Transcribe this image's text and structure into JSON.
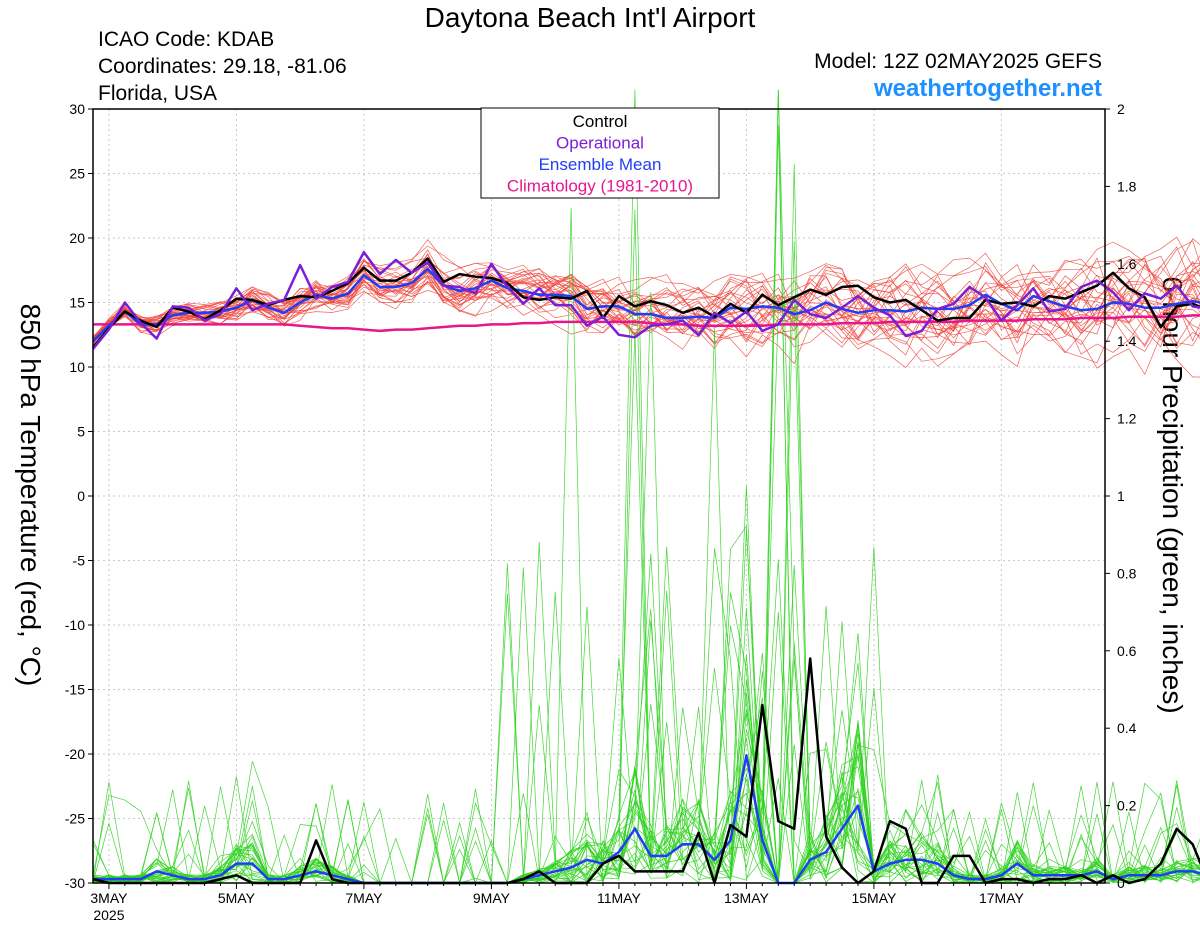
{
  "header": {
    "title": "Daytona Beach Int'l Airport",
    "icao": "ICAO Code: KDAB",
    "coords": "Coordinates: 29.18, -81.06",
    "region": "Florida, USA",
    "model": "Model: 12Z 02MAY2025 GEFS",
    "site": "weathertogether.net"
  },
  "colors": {
    "members": "#f0453c",
    "precip": "#2fd11f",
    "control": "#000000",
    "operational": "#7a1fd6",
    "mean": "#1f3ef5",
    "climatology": "#e6168f"
  },
  "chart_data": {
    "type": "line",
    "ylabel": "850 hPa Temperature (red, °C)",
    "y2label": "6-hour Precipitation (green, inches)",
    "ylim": [
      -30,
      30
    ],
    "y2lim": [
      0,
      2
    ],
    "yticks": [
      "30",
      "25",
      "20",
      "15",
      "10",
      "5",
      "0",
      "-5",
      "-10",
      "-15",
      "-20",
      "-25",
      "-30"
    ],
    "y2ticks": [
      "2",
      "1.8",
      "1.6",
      "1.4",
      "1.2",
      "1",
      "0.8",
      "0.6",
      "0.4",
      "0.2",
      "0"
    ],
    "xlim": [
      2.75,
      18.625
    ],
    "xticks": [
      {
        "x": 3,
        "label": "3MAY",
        "sub": "2025"
      },
      {
        "x": 5,
        "label": "5MAY",
        "sub": ""
      },
      {
        "x": 7,
        "label": "7MAY",
        "sub": ""
      },
      {
        "x": 9,
        "label": "9MAY",
        "sub": ""
      },
      {
        "x": 11,
        "label": "11MAY",
        "sub": ""
      },
      {
        "x": 13,
        "label": "13MAY",
        "sub": ""
      },
      {
        "x": 15,
        "label": "15MAY",
        "sub": ""
      },
      {
        "x": 17,
        "label": "17MAY",
        "sub": ""
      }
    ],
    "x_units": "days of May 2025, 6-hourly from 2.75 (12Z 02MAY)",
    "legend": {
      "position": "top-center",
      "entries": [
        "Control",
        "Operational",
        "Ensemble Mean",
        "Climatology (1981-2010)"
      ]
    },
    "temperature": {
      "control": [
        11.5,
        13,
        14.3,
        13.6,
        13.1,
        14.6,
        14.3,
        13.7,
        14.4,
        15.3,
        15.2,
        14.8,
        15.2,
        15.5,
        15.4,
        15.9,
        16.5,
        17.7,
        16.7,
        16.7,
        17.3,
        18.4,
        16.6,
        17.2,
        17,
        16.9,
        16.5,
        15.4,
        15.2,
        15.4,
        15.3,
        15.9,
        13.8,
        15.5,
        14.7,
        15.1,
        14.8,
        14.2,
        14.6,
        13.9,
        14.9,
        14.2,
        15.6,
        14.8,
        15.4,
        16,
        15.6,
        16.2,
        16.3,
        15.4,
        15,
        15.2,
        14.4,
        13.6,
        13.8,
        13.8,
        15.2,
        14.9,
        15,
        14.7,
        15.5,
        15.3,
        15.8,
        16.3,
        17.3,
        16.1,
        15.4,
        13.1,
        14.7,
        14.9,
        14.4
      ],
      "operational": [
        11.4,
        12.9,
        15,
        13.4,
        12.2,
        14.7,
        14.6,
        13.6,
        14.1,
        16.1,
        14.4,
        14.9,
        15.2,
        17.9,
        15.3,
        16.2,
        16.6,
        18.9,
        17.2,
        18.3,
        17.3,
        18.1,
        16.3,
        16.2,
        15.7,
        18,
        16.2,
        14.9,
        16.1,
        14.8,
        14.8,
        13.2,
        13.9,
        12.5,
        12.3,
        13.2,
        13.3,
        13.6,
        12.5,
        14.2,
        13.4,
        14.3,
        12.8,
        13.3,
        15.2,
        14.1,
        13.8,
        14.6,
        15.5,
        14.6,
        14,
        12.4,
        12.8,
        14.5,
        14.9,
        16.2,
        15.4,
        13.6,
        14.8,
        16.1,
        14.3,
        14.5,
        16.2,
        16.7,
        15.8,
        14.4,
        15.7,
        15.3,
        16.3,
        14.7,
        14.5
      ],
      "mean": [
        12,
        13.2,
        14.3,
        13.3,
        13.3,
        14,
        14.2,
        14.2,
        14.3,
        14.6,
        15.2,
        14.6,
        14.2,
        15,
        15.6,
        15.3,
        15.7,
        17.1,
        16.2,
        16.2,
        16.5,
        17.6,
        16.3,
        15.9,
        16.1,
        16.7,
        16.1,
        15.9,
        15.6,
        15.6,
        15.5,
        14.5,
        14.7,
        14.7,
        14.1,
        14.1,
        13.8,
        13.8,
        13.9,
        13.8,
        14.6,
        14.5,
        14.7,
        14.6,
        14.1,
        14.4,
        15,
        14.5,
        14.2,
        14.4,
        14.4,
        14.3,
        14.6,
        14.5,
        14.5,
        14.8,
        15.6,
        14.9,
        14.4,
        15.5,
        15.1,
        14.7,
        14.4,
        14.5,
        15,
        14.9,
        14.6,
        14.6,
        14.9,
        15.1,
        14.9
      ],
      "climatology": [
        13.3,
        13.3,
        13.3,
        13.3,
        13.3,
        13.3,
        13.3,
        13.3,
        13.3,
        13.3,
        13.3,
        13.3,
        13.3,
        13.2,
        13.1,
        13,
        13,
        12.9,
        12.8,
        12.9,
        12.9,
        13,
        13.1,
        13.2,
        13.2,
        13.3,
        13.3,
        13.4,
        13.4,
        13.5,
        13.5,
        13.5,
        13.5,
        13.5,
        13.5,
        13.4,
        13.3,
        13.3,
        13.2,
        13.2,
        13.2,
        13.2,
        13.2,
        13.3,
        13.3,
        13.3,
        13.3,
        13.4,
        13.4,
        13.4,
        13.5,
        13.5,
        13.5,
        13.5,
        13.5,
        13.6,
        13.6,
        13.6,
        13.6,
        13.7,
        13.7,
        13.7,
        13.8,
        13.8,
        13.8,
        13.9,
        13.9,
        13.9,
        13.9,
        14,
        14
      ]
    },
    "precipitation": {
      "control": [
        0.01,
        0,
        0,
        0,
        0,
        0,
        0,
        0,
        0.01,
        0.02,
        0,
        0,
        0,
        0,
        0.11,
        0.01,
        0,
        0,
        0,
        0,
        0,
        0,
        0,
        0,
        0,
        0,
        0,
        0.01,
        0.03,
        0,
        0,
        0,
        0.05,
        0.07,
        0.03,
        0.03,
        0.03,
        0.03,
        0.13,
        0,
        0.15,
        0.12,
        0.46,
        0.16,
        0.14,
        0.58,
        0.12,
        0.04,
        0,
        0.03,
        0.16,
        0.14,
        0,
        0,
        0.07,
        0.07,
        0,
        0.01,
        0.01,
        0,
        0.01,
        0.01,
        0.02,
        0,
        0.02,
        0,
        0.01,
        0.05,
        0.14,
        0.1,
        0,
        0
      ],
      "mean": [
        0.01,
        0.01,
        0.01,
        0.01,
        0.03,
        0.02,
        0.01,
        0.01,
        0.02,
        0.05,
        0.05,
        0.01,
        0.01,
        0.02,
        0.03,
        0.02,
        0.01,
        0,
        0,
        0,
        0,
        0,
        0,
        0,
        0,
        0,
        0,
        0.01,
        0.02,
        0.03,
        0.04,
        0.06,
        0.05,
        0.08,
        0.14,
        0.07,
        0.07,
        0.1,
        0.1,
        0.06,
        0.11,
        0.33,
        0.11,
        0,
        0,
        0.06,
        0.08,
        0.14,
        0.2,
        0.03,
        0.05,
        0.06,
        0.06,
        0.05,
        0.02,
        0.01,
        0.01,
        0.02,
        0.05,
        0.02,
        0.02,
        0.02,
        0.02,
        0.03,
        0.01,
        0.02,
        0.02,
        0.02,
        0.03,
        0.03,
        0.02,
        0.01
      ]
    },
    "members_note": "30 additional temperature members (red) and precipitation members (green) drawn as thin spaghetti lines"
  }
}
